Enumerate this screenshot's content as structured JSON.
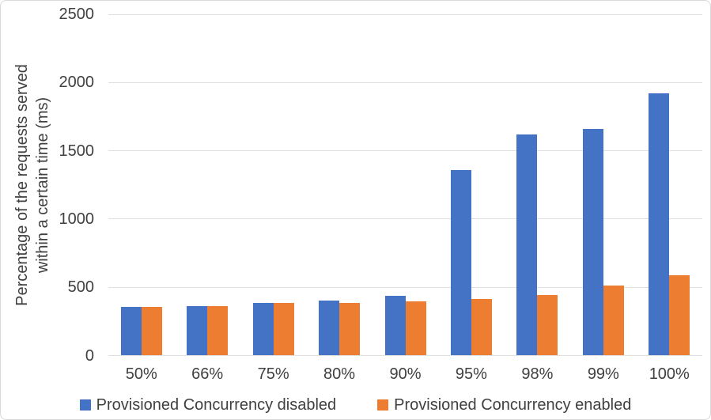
{
  "chart_data": {
    "type": "bar",
    "title": "",
    "ylabel": "Percentage of the requests served\nwithin a certain time (ms)",
    "xlabel": "",
    "categories": [
      "50%",
      "66%",
      "75%",
      "80%",
      "90%",
      "95%",
      "98%",
      "99%",
      "100%"
    ],
    "series": [
      {
        "name": "Provisioned Concurrency disabled",
        "key": "disabled",
        "color": "#4472C4",
        "values": [
          355,
          360,
          385,
          400,
          440,
          1360,
          1620,
          1660,
          1920
        ]
      },
      {
        "name": "Provisioned Concurrency enabled",
        "key": "enabled",
        "color": "#ED7D31",
        "values": [
          355,
          365,
          385,
          385,
          395,
          415,
          445,
          510,
          590
        ]
      }
    ],
    "ylim": [
      0,
      2500
    ],
    "yticks": [
      0,
      500,
      1000,
      1500,
      2000,
      2500
    ],
    "grid": true,
    "legend_position": "bottom"
  },
  "colors": {
    "series_disabled": "#4472C4",
    "series_enabled": "#ED7D31",
    "gridline": "#E0E0E0",
    "text": "#404040",
    "frame_border": "#D9D9D9",
    "background": "#FFFFFF"
  }
}
